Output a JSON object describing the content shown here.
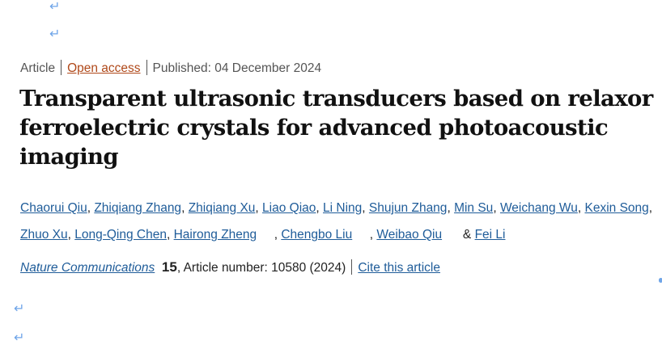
{
  "paragraph_mark": "↵",
  "meta": {
    "type": "Article",
    "access": "Open access",
    "published": "Published: 04 December 2024"
  },
  "title": "Transparent ultrasonic transducers based on relaxor ferroelectric crystals for advanced photoacoustic imaging",
  "authors": [
    {
      "name": "Chaorui Qiu",
      "sep": ", "
    },
    {
      "name": "Zhiqiang Zhang",
      "sep": ", "
    },
    {
      "name": "Zhiqiang Xu",
      "sep": ", "
    },
    {
      "name": "Liao Qiao",
      "sep": ", "
    },
    {
      "name": "Li Ning",
      "sep": ", "
    },
    {
      "name": "Shujun Zhang",
      "sep": ", "
    },
    {
      "name": "Min Su",
      "sep": ", "
    },
    {
      "name": "Weichang Wu",
      "sep": ", "
    },
    {
      "name": "Kexin Song",
      "sep": ", "
    },
    {
      "name": "Zhuo Xu",
      "sep": ", "
    },
    {
      "name": "Long-Qing Chen",
      "sep": ", "
    },
    {
      "name": "Hairong Zheng",
      "sep": "     , "
    },
    {
      "name": "Chengbo Liu",
      "sep": "     , "
    },
    {
      "name": "Weibao Qiu",
      "sep": "      & "
    },
    {
      "name": "Fei Li",
      "sep": ""
    }
  ],
  "citation": {
    "journal": "Nature Communications",
    "volume": "15",
    "details": ", Article number: 10580 (2024)",
    "cite_link": "Cite this article"
  },
  "colors": {
    "link": "#1f5c99",
    "open_access": "#b0491a",
    "paragraph_mark": "#6fa5e8"
  }
}
